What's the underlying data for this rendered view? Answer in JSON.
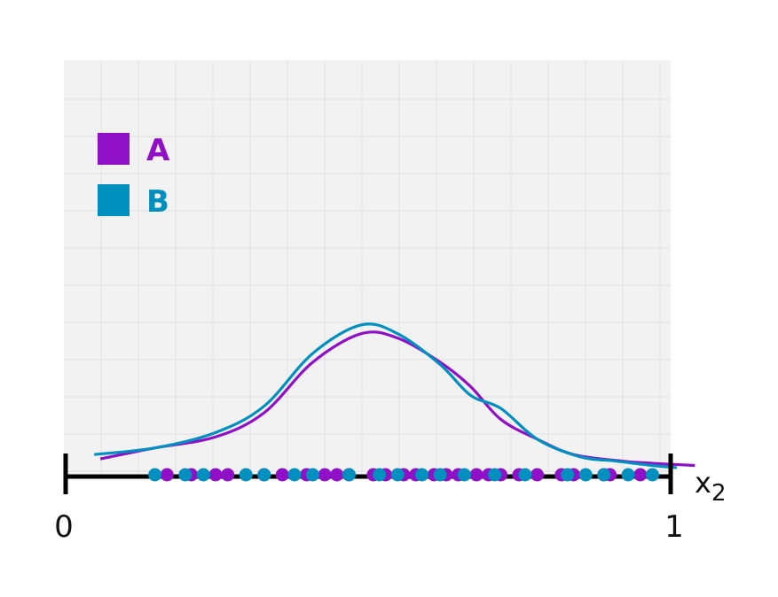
{
  "chart_data": {
    "type": "density",
    "xlabel": "x",
    "xlabel_subscript": "2",
    "xlim": [
      0,
      1
    ],
    "x_ticks": [
      "0",
      "1"
    ],
    "grid": true,
    "legend_position": "top-left",
    "series": [
      {
        "name": "A",
        "color": "#9010c8",
        "points": [
          0.17,
          0.21,
          0.25,
          0.27,
          0.33,
          0.36,
          0.4,
          0.43,
          0.45,
          0.47,
          0.51,
          0.53,
          0.56,
          0.58,
          0.61,
          0.63,
          0.65,
          0.68,
          0.7,
          0.72,
          0.75,
          0.78,
          0.82,
          0.84,
          0.89,
          0.9,
          0.95
        ],
        "density": [
          [
            0.06,
            0.04
          ],
          [
            0.15,
            0.09
          ],
          [
            0.25,
            0.14
          ],
          [
            0.33,
            0.25
          ],
          [
            0.41,
            0.48
          ],
          [
            0.49,
            0.61
          ],
          [
            0.55,
            0.59
          ],
          [
            0.62,
            0.48
          ],
          [
            0.67,
            0.37
          ],
          [
            0.72,
            0.22
          ],
          [
            0.78,
            0.13
          ],
          [
            0.84,
            0.06
          ],
          [
            0.92,
            0.03
          ],
          [
            0.97,
            0.02
          ],
          [
            1.04,
            0.01
          ]
        ]
      },
      {
        "name": "B",
        "color": "#0090c0",
        "points": [
          0.15,
          0.2,
          0.23,
          0.3,
          0.33,
          0.38,
          0.41,
          0.47,
          0.52,
          0.55,
          0.59,
          0.62,
          0.66,
          0.71,
          0.76,
          0.83,
          0.86,
          0.89,
          0.93,
          0.97
        ],
        "density": [
          [
            0.05,
            0.06
          ],
          [
            0.15,
            0.09
          ],
          [
            0.25,
            0.16
          ],
          [
            0.33,
            0.28
          ],
          [
            0.41,
            0.52
          ],
          [
            0.49,
            0.65
          ],
          [
            0.55,
            0.61
          ],
          [
            0.62,
            0.47
          ],
          [
            0.67,
            0.33
          ],
          [
            0.72,
            0.27
          ],
          [
            0.78,
            0.13
          ],
          [
            0.85,
            0.05
          ],
          [
            0.91,
            0.03
          ],
          [
            0.97,
            0.01
          ],
          [
            1.01,
            0.0
          ]
        ]
      }
    ]
  }
}
